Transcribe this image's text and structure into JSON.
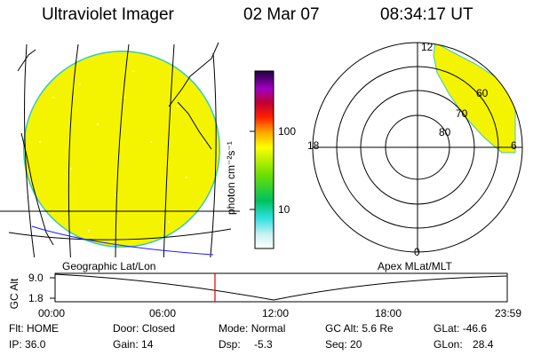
{
  "header": {
    "title": "Ultraviolet Imager",
    "date": "02 Mar 07",
    "time": "08:34:17 UT"
  },
  "colorbar": {
    "unit_label": "photon cm⁻²s⁻¹",
    "ticks": [
      "100",
      "10"
    ]
  },
  "polar": {
    "labels": {
      "top": "12",
      "left": "18",
      "right": "6",
      "bottom": "0"
    },
    "rings": [
      "80",
      "70",
      "60"
    ]
  },
  "section": {
    "left": "Geographic Lat/Lon",
    "right": "Apex MLat/MLT"
  },
  "timeline": {
    "ylabel": "GC Alt",
    "y_ticks": [
      "9.0",
      "1.8"
    ],
    "x_ticks": [
      "00:00",
      "06:00",
      "12:00",
      "18:00",
      "23:59"
    ]
  },
  "status": {
    "flt_label": "Flt:",
    "flt": "HOME",
    "door_label": "Door:",
    "door": "Closed",
    "mode_label": "Mode:",
    "mode": "Normal",
    "gcalt_label": "GC Alt:",
    "gcalt": "5.6 Re",
    "glat_label": "GLat:",
    "glat": "-46.6",
    "ip_label": "IP:",
    "ip": "36.0",
    "gain_label": "Gain:",
    "gain": "14",
    "dsp_label": "Dsp:",
    "dsp": "-5.3",
    "seq_label": "Seq:",
    "seq": "20",
    "glon_label": "GLon:",
    "glon": "28.4"
  },
  "colors": {
    "image_fill": "#f4f400",
    "ring_edge": "#38c8c0",
    "marker": "#e00000",
    "coast": "#1a1aff"
  }
}
